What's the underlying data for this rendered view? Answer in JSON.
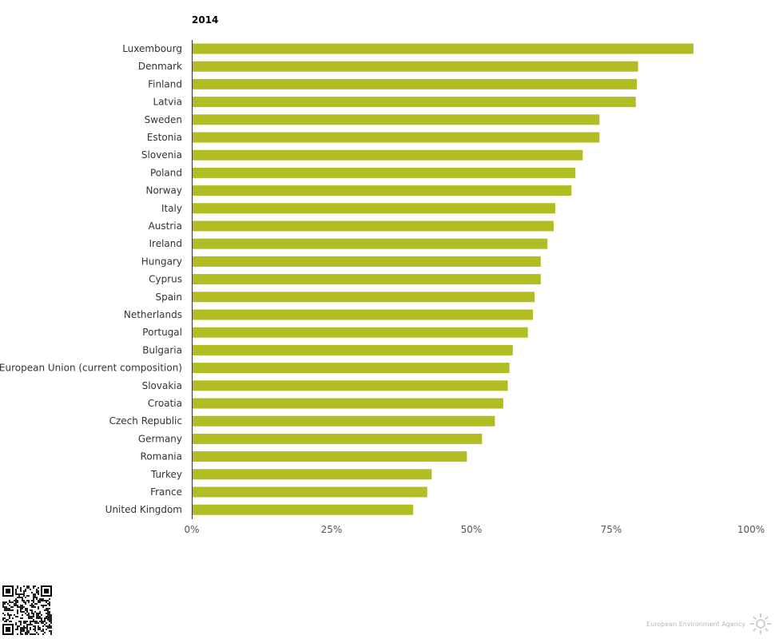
{
  "chart_data": {
    "type": "bar",
    "orientation": "horizontal",
    "title": "2014",
    "categories": [
      "Luxembourg",
      "Denmark",
      "Finland",
      "Latvia",
      "Sweden",
      "Estonia",
      "Slovenia",
      "Poland",
      "Norway",
      "Italy",
      "Austria",
      "Ireland",
      "Hungary",
      "Cyprus",
      "Spain",
      "Netherlands",
      "Portugal",
      "Bulgaria",
      "European Union (current composition)",
      "Slovakia",
      "Croatia",
      "Czech Republic",
      "Germany",
      "Romania",
      "Turkey",
      "France",
      "United Kingdom"
    ],
    "values": [
      89.7,
      79.8,
      79.6,
      79.4,
      72.9,
      72.9,
      69.9,
      68.6,
      67.9,
      65.0,
      64.7,
      63.6,
      62.4,
      62.4,
      61.3,
      61.0,
      60.1,
      57.4,
      56.8,
      56.5,
      55.7,
      54.2,
      51.9,
      49.2,
      42.9,
      42.1,
      39.6
    ],
    "xlim": [
      0,
      100
    ],
    "xticks": [
      0,
      25,
      50,
      75,
      100
    ],
    "xtick_labels": [
      "0%",
      "25%",
      "50%",
      "75%",
      "100%"
    ],
    "bar_color": "#b1bd22",
    "xlabel": "",
    "ylabel": ""
  },
  "branding": {
    "agency": "European Environment Agency",
    "logo_icon": "sun-burst-icon",
    "qr_icon": "qr-code-icon"
  }
}
